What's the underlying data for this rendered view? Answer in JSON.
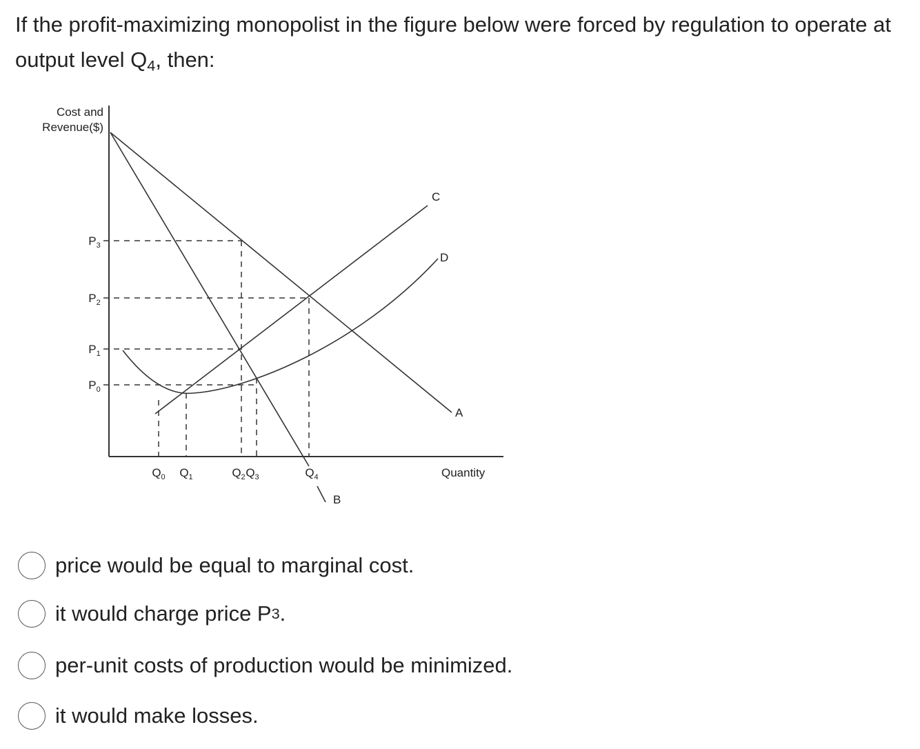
{
  "question": {
    "text": "If the profit-maximizing monopolist in the figure below were forced by regulation to operate at output level Q",
    "subscript": "4",
    "text_after": ", then:"
  },
  "figure": {
    "y_axis_label": [
      "Cost and",
      "Revenue($)"
    ],
    "x_axis_label": "Quantity",
    "price_labels": [
      {
        "letter": "P",
        "sub": "3"
      },
      {
        "letter": "P",
        "sub": "2"
      },
      {
        "letter": "P",
        "sub": "1"
      },
      {
        "letter": "P",
        "sub": "0"
      }
    ],
    "quantity_labels": [
      {
        "letter": "Q",
        "sub": "0"
      },
      {
        "letter": "Q",
        "sub": "1"
      },
      {
        "letter": "Q",
        "sub": "2"
      },
      {
        "letter": "Q",
        "sub": "3"
      },
      {
        "letter": "Q",
        "sub": "4"
      }
    ],
    "curve_labels": [
      "C",
      "D",
      "A",
      "B"
    ]
  },
  "options": [
    {
      "text": "price would be equal to marginal cost."
    },
    {
      "text": "it would charge price P",
      "subscript": "3",
      "text_after": "."
    },
    {
      "text": "per-unit costs of production would be minimized."
    },
    {
      "text": "it would make losses."
    }
  ]
}
